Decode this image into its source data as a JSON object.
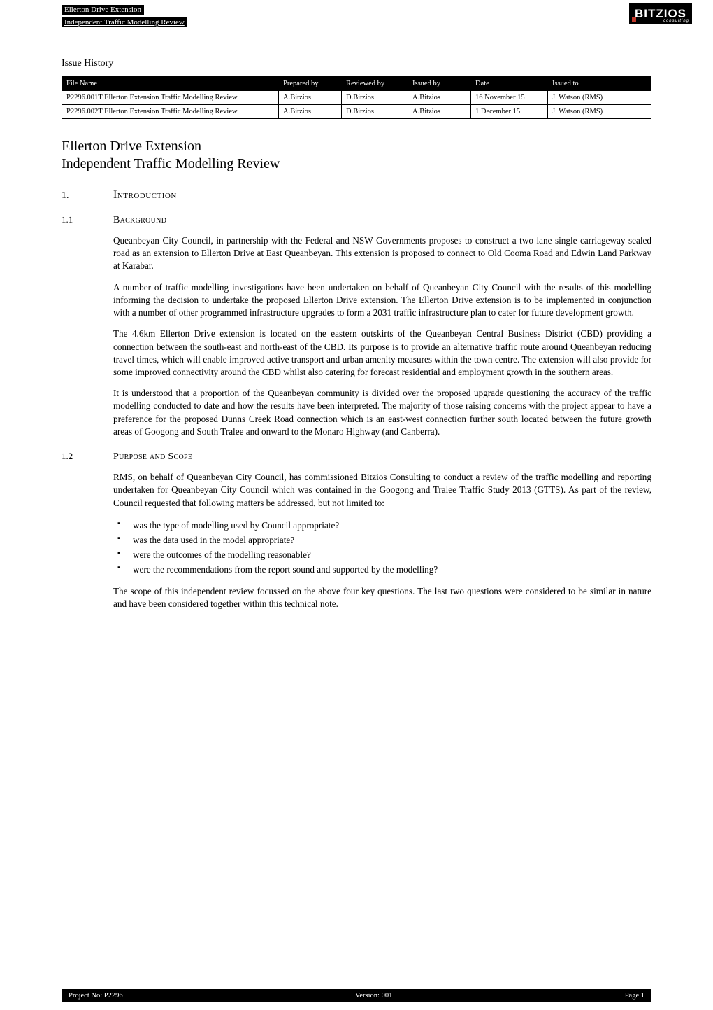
{
  "colors": {
    "header_bg": "#000000",
    "header_text": "#ffffff",
    "body_bg": "#ffffff",
    "body_text": "#000000",
    "table_header_bg": "#000000",
    "table_header_text": "#ffffff",
    "table_border": "#000000",
    "footer_bg": "#000000",
    "footer_text": "#ffffff",
    "logo_accent": "#c0392b"
  },
  "typography": {
    "body_font": "Georgia, Times New Roman, serif",
    "body_size_pt": 10,
    "title_size_pt": 15,
    "section_title_size_pt": 12
  },
  "header": {
    "line1": "Ellerton Drive Extension",
    "line2": "Independent Traffic Modelling Review",
    "logo_text": "BITZIOS",
    "logo_sub": "consulting"
  },
  "issue_history": {
    "title": "Issue History",
    "columns": [
      "File Name",
      "Prepared by",
      "Reviewed by",
      "Issued by",
      "Date",
      "Issued to"
    ],
    "rows": [
      [
        "P2296.001T Ellerton Extension Traffic Modelling Review",
        "A.Bitzios",
        "D.Bitzios",
        "A.Bitzios",
        "16 November 15",
        "J. Watson (RMS)"
      ],
      [
        "P2296.002T Ellerton Extension Traffic Modelling Review",
        "A.Bitzios",
        "D.Bitzios",
        "A.Bitzios",
        "1 December 15",
        "J. Watson (RMS)"
      ]
    ]
  },
  "doc": {
    "title": "Ellerton Drive Extension",
    "subtitle": "Independent Traffic Modelling Review"
  },
  "section1": {
    "num": "1.",
    "title": "Introduction"
  },
  "section1_1": {
    "num": "1.1",
    "title": "Background",
    "p1": "Queanbeyan City Council, in partnership with the Federal and NSW Governments proposes to construct a two lane single carriageway sealed road as an extension to Ellerton Drive at East Queanbeyan.  This extension is proposed to connect to Old Cooma Road and Edwin Land Parkway at Karabar.",
    "p2": "A number of traffic modelling investigations have been undertaken on behalf of Queanbeyan City Council with the results of this modelling informing the decision to undertake the proposed Ellerton Drive extension.  The Ellerton Drive extension is to be implemented in conjunction with a number of other programmed infrastructure upgrades to form a 2031 traffic infrastructure plan to cater for future development growth.",
    "p3": "The 4.6km Ellerton Drive extension is located on the eastern outskirts of the Queanbeyan Central Business District (CBD) providing a connection between the south-east and north-east of the CBD.  Its purpose is to provide an alternative traffic route around Queanbeyan reducing travel times, which will enable improved active transport and urban amenity measures within the town centre.  The extension will also provide for some improved connectivity around the CBD whilst also catering for forecast residential and employment growth in the southern areas.",
    "p4": "It is understood that a proportion of the Queanbeyan community is divided over the proposed upgrade questioning the accuracy of the traffic modelling conducted to date and how the results have been interpreted.  The majority of those raising concerns with the project appear to have a preference for the proposed Dunns Creek Road connection which is an east-west connection further south located between the future growth areas of Googong and South Tralee and onward to the Monaro Highway (and Canberra)."
  },
  "section1_2": {
    "num": "1.2",
    "title": "Purpose and Scope",
    "p1": "RMS, on behalf of Queanbeyan City Council, has commissioned Bitzios Consulting to conduct a review of the traffic modelling and reporting undertaken for Queanbeyan City Council which was contained in the Googong and Tralee Traffic Study 2013 (GTTS).  As part of the review, Council requested that following matters be addressed, but not limited to:",
    "bullets": [
      "was the type of modelling used by Council appropriate?",
      "was the data used in the model appropriate?",
      "were the outcomes of the modelling reasonable?",
      "were the recommendations from the report sound and supported by the modelling?"
    ],
    "p2": "The scope of this independent review focussed on the above four key questions.  The last two questions were considered to be similar in nature and have been considered together within this technical note."
  },
  "footer": {
    "left": "Project No: P2296",
    "center": "Version:  001",
    "right": "Page 1"
  }
}
